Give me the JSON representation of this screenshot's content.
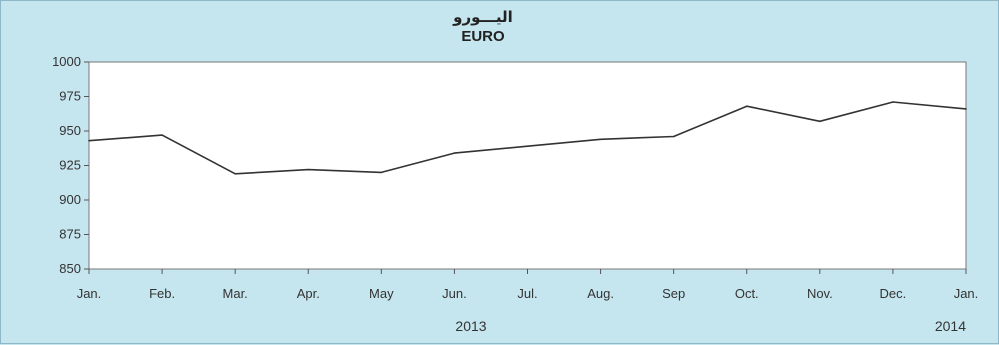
{
  "chart_data": {
    "type": "line",
    "title": "اليـــورو",
    "subtitle": "EURO",
    "categories": [
      "Jan.",
      "Feb.",
      "Mar.",
      "Apr.",
      "May",
      "Jun.",
      "Jul.",
      "Aug.",
      "Sep",
      "Oct.",
      "Nov.",
      "Dec.",
      "Jan."
    ],
    "series": [
      {
        "values": [
          943,
          947,
          919,
          922,
          920,
          934,
          939,
          944,
          946,
          968,
          957,
          971,
          966
        ]
      }
    ],
    "ylim": [
      850,
      1000
    ],
    "yticks": [
      850,
      875,
      900,
      925,
      950,
      975,
      1000
    ],
    "year_labels": [
      "2013",
      "2014"
    ],
    "grid": false,
    "colors": {
      "background": "#c6e6ef",
      "plot_area": "#ffffff",
      "line": "#333333"
    }
  }
}
